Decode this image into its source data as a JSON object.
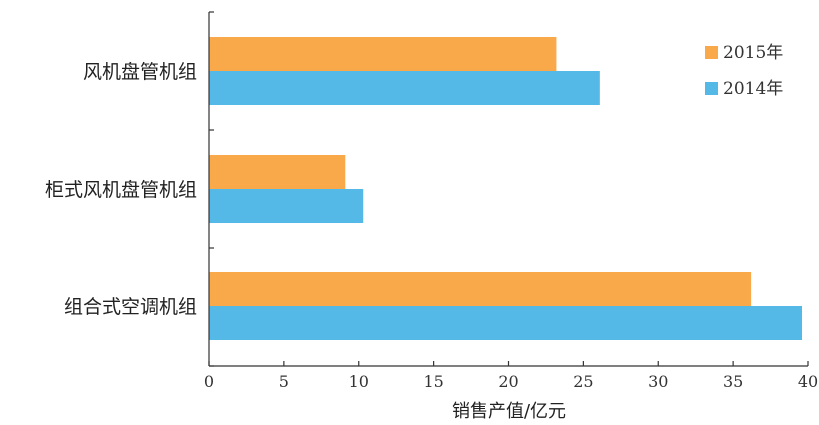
{
  "chart_data": {
    "type": "bar",
    "orientation": "horizontal",
    "categories": [
      "风机盘管机组",
      "柜式风机盘管机组",
      "组合式空调机组"
    ],
    "series": [
      {
        "name": "2015年",
        "color": "#F9A84A",
        "values": [
          23.2,
          9.1,
          36.2
        ]
      },
      {
        "name": "2014年",
        "color": "#55B9E8",
        "values": [
          26.1,
          10.3,
          39.6
        ]
      }
    ],
    "xlabel": "销售产值/亿元",
    "xlim": [
      0,
      40
    ],
    "xticks": [
      "0",
      "5",
      "10",
      "15",
      "20",
      "25",
      "30",
      "35",
      "40"
    ],
    "grid": false,
    "legend_position": "top-right"
  }
}
